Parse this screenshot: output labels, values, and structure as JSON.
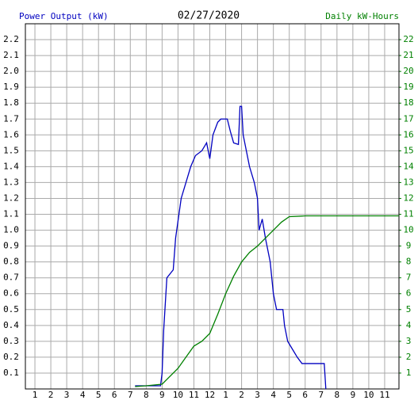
{
  "chart_data": {
    "type": "line",
    "title": "02/27/2020",
    "ylabel": "Power Output (kW)",
    "y2label": "Daily kW-Hours",
    "xlim": [
      0.4,
      23.9
    ],
    "xticks": [
      1,
      2,
      3,
      4,
      5,
      6,
      7,
      8,
      9,
      10,
      11,
      12,
      {
        "value": 13,
        "label": "1"
      },
      {
        "value": 14,
        "label": "2"
      },
      {
        "value": 15,
        "label": "3"
      },
      {
        "value": 16,
        "label": "4"
      },
      {
        "value": 17,
        "label": "5"
      },
      {
        "value": 18,
        "label": "6"
      },
      {
        "value": 19,
        "label": "7"
      },
      {
        "value": 20,
        "label": "8"
      },
      {
        "value": 21,
        "label": "9"
      },
      {
        "value": 22,
        "label": "10"
      },
      {
        "value": 23,
        "label": "11"
      }
    ],
    "ylim": [
      0,
      2.3
    ],
    "yticks": [
      0.1,
      0.2,
      0.3,
      0.4,
      0.5,
      0.6,
      0.7,
      0.8,
      0.9,
      {
        "value": 1,
        "label": "1.0"
      },
      1.1,
      1.2,
      1.3,
      1.4,
      1.5,
      1.6,
      1.7,
      1.8,
      1.9,
      {
        "value": 2,
        "label": "2.0"
      },
      2.1,
      2.2
    ],
    "y2lim": [
      0,
      23
    ],
    "y2ticks": [
      1,
      2,
      3,
      4,
      5,
      6,
      7,
      8,
      9,
      10,
      11,
      12,
      13,
      14,
      15,
      16,
      17,
      18,
      19,
      20,
      21,
      22
    ],
    "grid": true,
    "series": [
      {
        "name": "Power Output (kW)",
        "color": "#0000c0",
        "axis": "y",
        "x": [
          7.3,
          8.9,
          9.0,
          9.1,
          9.3,
          9.7,
          9.85,
          10.2,
          10.5,
          10.8,
          11.1,
          11.5,
          11.8,
          12.0,
          12.2,
          12.5,
          12.7,
          13.1,
          13.3,
          13.5,
          13.8,
          13.9,
          14.0,
          14.1,
          14.3,
          14.5,
          14.8,
          15.0,
          15.1,
          15.3,
          15.5,
          15.8,
          16.0,
          16.2,
          16.6,
          16.7,
          16.9,
          17.2,
          17.5,
          17.8,
          19.2,
          19.3
        ],
        "values": [
          0.02,
          0.02,
          0.1,
          0.37,
          0.7,
          0.75,
          0.95,
          1.2,
          1.3,
          1.4,
          1.47,
          1.5,
          1.55,
          1.45,
          1.6,
          1.68,
          1.7,
          1.7,
          1.62,
          1.55,
          1.54,
          1.78,
          1.78,
          1.6,
          1.5,
          1.4,
          1.3,
          1.2,
          1.0,
          1.07,
          0.95,
          0.8,
          0.6,
          0.5,
          0.5,
          0.4,
          0.3,
          0.25,
          0.2,
          0.16,
          0.16,
          0
        ]
      },
      {
        "name": "Daily kW-Hours",
        "color": "#008000",
        "axis": "y2",
        "x": [
          7.3,
          8.0,
          8.5,
          9.0,
          9.5,
          10.0,
          10.5,
          11.0,
          11.5,
          12.0,
          12.5,
          13.0,
          13.5,
          14.0,
          14.5,
          15.0,
          15.5,
          16.0,
          16.5,
          17.0,
          18.0,
          23.9
        ],
        "values": [
          0.15,
          0.2,
          0.25,
          0.3,
          0.8,
          1.3,
          2.0,
          2.7,
          3.0,
          3.5,
          4.7,
          6.0,
          7.1,
          8.0,
          8.6,
          9.0,
          9.5,
          10.0,
          10.5,
          10.85,
          10.9,
          10.9
        ]
      }
    ]
  }
}
